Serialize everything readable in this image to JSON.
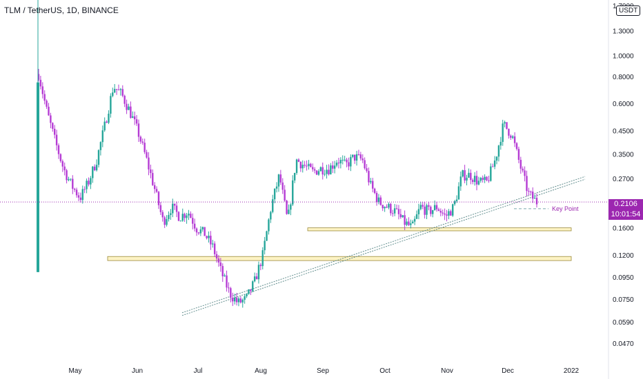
{
  "header": {
    "title": "TLM / TetherUS, 1D, BINANCE",
    "currency": "USDT"
  },
  "last_price": {
    "value": "0.2106",
    "countdown": "10:01:54",
    "color": "#9c27b0"
  },
  "annotation": {
    "key_point": "Key Point"
  },
  "colors": {
    "up": "#26a69a",
    "down": "#b53bd4",
    "zone_fill": "#fdf3c4",
    "zone_border": "#9b8a3a",
    "trendline": "#5f8c8c",
    "axis_text": "#131722",
    "price_line": "#9c27b0"
  },
  "chart_data": {
    "type": "candlestick",
    "scale": "log",
    "ylim": [
      0.04,
      1.8
    ],
    "x_ticks": [
      "May",
      "Jun",
      "Jul",
      "Aug",
      "Sep",
      "Oct",
      "Nov",
      "Dec",
      "2022"
    ],
    "y_ticks": [
      "1.7000",
      "1.3000",
      "1.0000",
      "0.8000",
      "0.6000",
      "0.4500",
      "0.3500",
      "0.2700",
      "0.1600",
      "0.1200",
      "0.0950",
      "0.0750",
      "0.0590",
      "0.0470"
    ],
    "date_range": [
      "2021-04-07",
      "2021-12-16"
    ],
    "path_closes": [
      0.82,
      0.55,
      0.4,
      0.3,
      0.25,
      0.22,
      0.26,
      0.33,
      0.48,
      0.72,
      0.66,
      0.55,
      0.44,
      0.33,
      0.24,
      0.17,
      0.2,
      0.18,
      0.19,
      0.16,
      0.15,
      0.13,
      0.1,
      0.08,
      0.072,
      0.075,
      0.09,
      0.12,
      0.2,
      0.28,
      0.17,
      0.33,
      0.31,
      0.29,
      0.3,
      0.3,
      0.33,
      0.31,
      0.34,
      0.33,
      0.25,
      0.21,
      0.2,
      0.19,
      0.17,
      0.16,
      0.2,
      0.19,
      0.2,
      0.18,
      0.2,
      0.28,
      0.28,
      0.26,
      0.26,
      0.33,
      0.48,
      0.43,
      0.31,
      0.23,
      0.2106
    ],
    "resistance_zones": [
      {
        "low": 0.155,
        "high": 0.16
      },
      {
        "low": 0.113,
        "high": 0.118
      }
    ],
    "trendline": {
      "from_price": 0.064,
      "to_price": 0.272,
      "label": "Key Point",
      "key_price": 0.196
    }
  }
}
